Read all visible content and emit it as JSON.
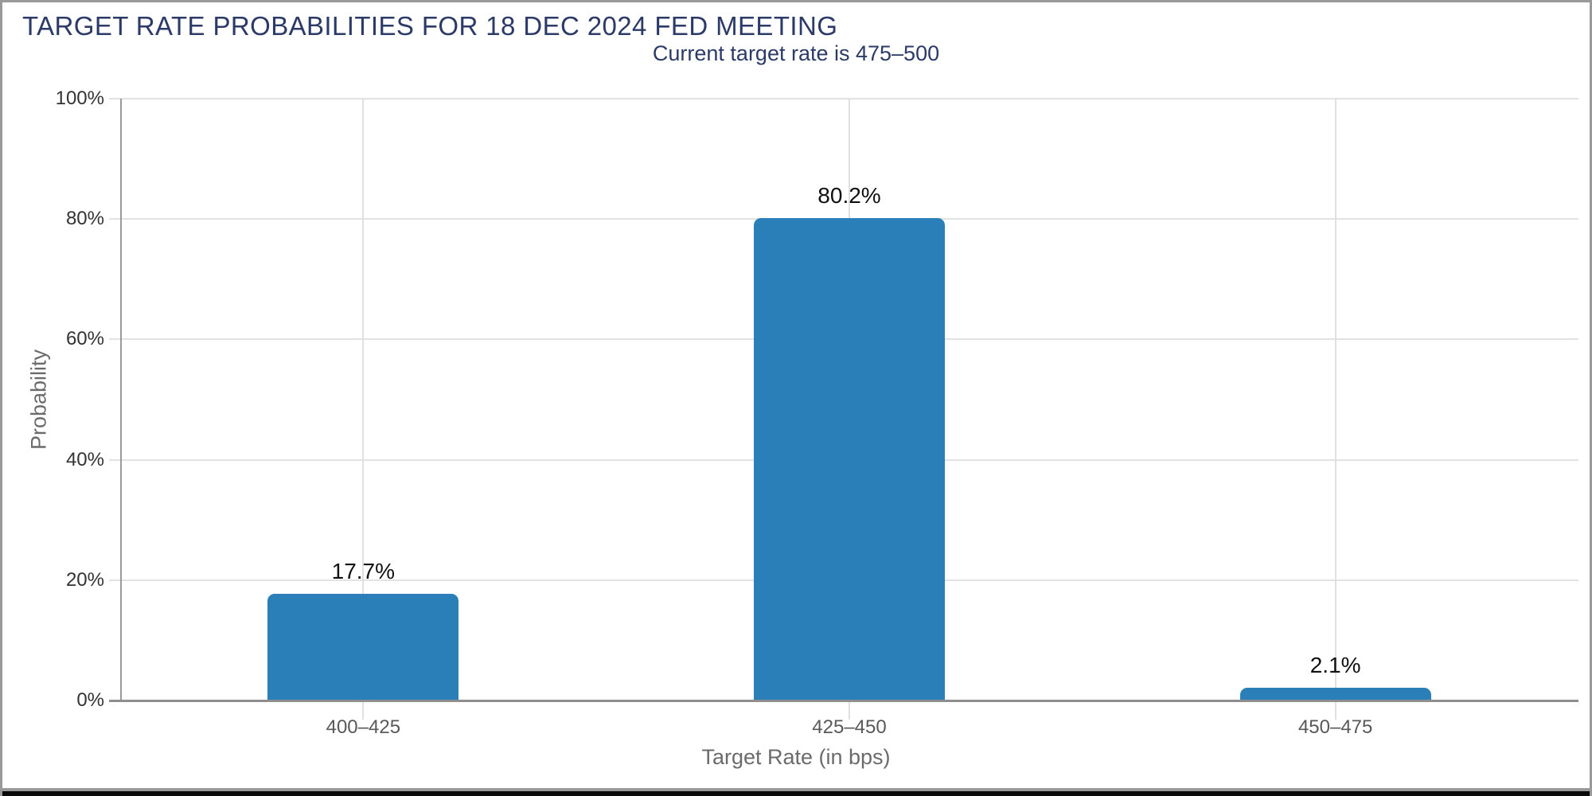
{
  "chart_data": {
    "type": "bar",
    "title": "TARGET RATE PROBABILITIES FOR 18 DEC 2024 FED MEETING",
    "subtitle": "Current target rate is 475–500",
    "categories": [
      "400–425",
      "425–450",
      "450–475"
    ],
    "values": [
      17.7,
      80.2,
      2.1
    ],
    "value_labels": [
      "17.7%",
      "80.2%",
      "2.1%"
    ],
    "xlabel": "Target Rate (in bps)",
    "ylabel": "Probability",
    "ylim": [
      0,
      100
    ],
    "yticks": [
      0,
      20,
      40,
      60,
      80,
      100
    ],
    "ytick_labels": [
      "0%",
      "20%",
      "40%",
      "60%",
      "80%",
      "100%"
    ],
    "grid": true,
    "legend": false,
    "bar_color": "#2a7fb8",
    "title_color": "#2b3a67",
    "value_label_color": "#111111",
    "axis_line_color": "#9a9a9a",
    "gridline_color": "#e2e2e2"
  }
}
